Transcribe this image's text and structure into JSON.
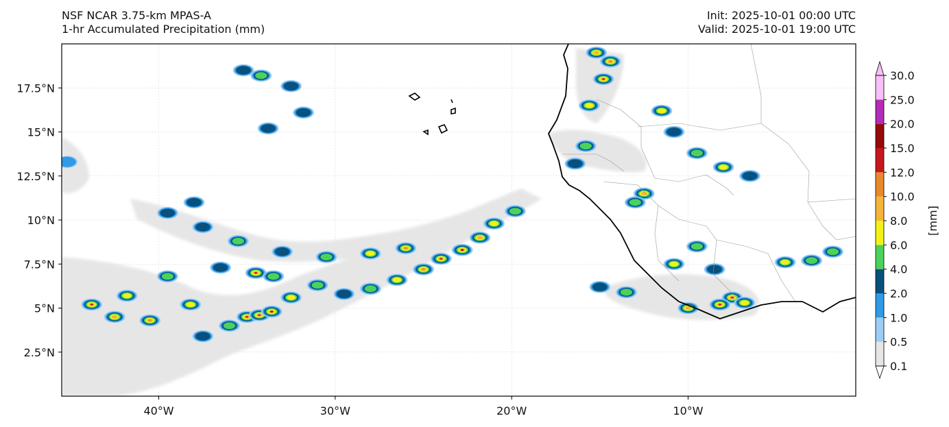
{
  "header": {
    "model_line": "NSF NCAR 3.75-km MPAS-A",
    "field_line": "1-hr Accumulated Precipitation (mm)",
    "init_line": "Init: 2025-10-01 00:00 UTC",
    "valid_line": "Valid: 2025-10-01 19:00 UTC"
  },
  "map": {
    "lon_ticks": [
      {
        "lon": -40,
        "label": "40°W"
      },
      {
        "lon": -30,
        "label": "30°W"
      },
      {
        "lon": -20,
        "label": "20°W"
      },
      {
        "lon": -10,
        "label": "10°W"
      }
    ],
    "lat_ticks": [
      {
        "lat": 17.5,
        "label": "17.5°N"
      },
      {
        "lat": 15,
        "label": "15°N"
      },
      {
        "lat": 12.5,
        "label": "12.5°N"
      },
      {
        "lat": 10,
        "label": "10°N"
      },
      {
        "lat": 7.5,
        "label": "7.5°N"
      },
      {
        "lat": 5,
        "label": "5°N"
      },
      {
        "lat": 2.5,
        "label": "2.5°N"
      }
    ],
    "extent": {
      "lon_min": -45.5,
      "lon_max": -0.5,
      "lat_min": 0,
      "lat_max": 20
    }
  },
  "colorbar": {
    "unit_label": "[mm]",
    "levels": [
      "0.1",
      "0.5",
      "1.0",
      "2.0",
      "4.0",
      "6.0",
      "8.0",
      "10.0",
      "12.0",
      "15.0",
      "20.0",
      "25.0",
      "30.0"
    ],
    "colors": [
      "#e6e6e6",
      "#9dcdf5",
      "#2e9ae8",
      "#08507d",
      "#4cd15c",
      "#f2f217",
      "#f5b43a",
      "#e8892a",
      "#c8171c",
      "#950b0b",
      "#b32bb8",
      "#f7c1f5"
    ],
    "under_color": "#ffffff",
    "over_color": "#f7c1f5"
  },
  "precip_cells": [
    {
      "lon": -43.8,
      "lat": 5.2,
      "v": 12
    },
    {
      "lon": -42.5,
      "lat": 4.5,
      "v": 8
    },
    {
      "lon": -41.8,
      "lat": 5.7,
      "v": 6
    },
    {
      "lon": -40.5,
      "lat": 4.3,
      "v": 10
    },
    {
      "lon": -39.5,
      "lat": 6.8,
      "v": 4
    },
    {
      "lon": -38.2,
      "lat": 5.2,
      "v": 6
    },
    {
      "lon": -37.5,
      "lat": 3.4,
      "v": 3
    },
    {
      "lon": -36.0,
      "lat": 4.0,
      "v": 4
    },
    {
      "lon": -35.0,
      "lat": 4.5,
      "v": 12
    },
    {
      "lon": -34.3,
      "lat": 4.6,
      "v": 20
    },
    {
      "lon": -33.6,
      "lat": 4.8,
      "v": 15
    },
    {
      "lon": -32.5,
      "lat": 5.6,
      "v": 6
    },
    {
      "lon": -31.0,
      "lat": 6.3,
      "v": 4
    },
    {
      "lon": -29.5,
      "lat": 5.8,
      "v": 3
    },
    {
      "lon": -28.0,
      "lat": 6.1,
      "v": 4
    },
    {
      "lon": -26.5,
      "lat": 6.6,
      "v": 6
    },
    {
      "lon": -25.0,
      "lat": 7.2,
      "v": 10
    },
    {
      "lon": -24.0,
      "lat": 7.8,
      "v": 12
    },
    {
      "lon": -22.8,
      "lat": 8.3,
      "v": 15
    },
    {
      "lon": -21.8,
      "lat": 9.0,
      "v": 8
    },
    {
      "lon": -21.0,
      "lat": 9.8,
      "v": 6
    },
    {
      "lon": -19.8,
      "lat": 10.5,
      "v": 4
    },
    {
      "lon": -26.0,
      "lat": 8.4,
      "v": 10
    },
    {
      "lon": -28.0,
      "lat": 8.1,
      "v": 6
    },
    {
      "lon": -30.5,
      "lat": 7.9,
      "v": 4
    },
    {
      "lon": -33.0,
      "lat": 8.2,
      "v": 3
    },
    {
      "lon": -35.5,
      "lat": 8.8,
      "v": 4
    },
    {
      "lon": -37.5,
      "lat": 9.6,
      "v": 3
    },
    {
      "lon": -39.5,
      "lat": 10.4,
      "v": 2
    },
    {
      "lon": -38.0,
      "lat": 11.0,
      "v": 2
    },
    {
      "lon": -34.5,
      "lat": 7.0,
      "v": 12
    },
    {
      "lon": -33.5,
      "lat": 6.8,
      "v": 4
    },
    {
      "lon": -36.5,
      "lat": 7.3,
      "v": 2
    },
    {
      "lon": -34.2,
      "lat": 18.2,
      "v": 4
    },
    {
      "lon": -32.5,
      "lat": 17.6,
      "v": 3
    },
    {
      "lon": -35.2,
      "lat": 18.5,
      "v": 2
    },
    {
      "lon": -33.8,
      "lat": 15.2,
      "v": 2
    },
    {
      "lon": -31.8,
      "lat": 16.1,
      "v": 2
    },
    {
      "lon": -45.2,
      "lat": 13.3,
      "v": 1
    },
    {
      "lon": -15.2,
      "lat": 19.5,
      "v": 8
    },
    {
      "lon": -14.8,
      "lat": 18.0,
      "v": 12
    },
    {
      "lon": -15.6,
      "lat": 16.5,
      "v": 6
    },
    {
      "lon": -14.4,
      "lat": 19.0,
      "v": 10
    },
    {
      "lon": -15.8,
      "lat": 14.2,
      "v": 4
    },
    {
      "lon": -16.4,
      "lat": 13.2,
      "v": 3
    },
    {
      "lon": -11.5,
      "lat": 16.2,
      "v": 6
    },
    {
      "lon": -10.8,
      "lat": 15.0,
      "v": 3
    },
    {
      "lon": -9.5,
      "lat": 13.8,
      "v": 4
    },
    {
      "lon": -8.0,
      "lat": 13.0,
      "v": 6
    },
    {
      "lon": -6.5,
      "lat": 12.5,
      "v": 3
    },
    {
      "lon": -12.5,
      "lat": 11.5,
      "v": 8
    },
    {
      "lon": -13.0,
      "lat": 11.0,
      "v": 4
    },
    {
      "lon": -9.5,
      "lat": 8.5,
      "v": 4
    },
    {
      "lon": -10.8,
      "lat": 7.5,
      "v": 6
    },
    {
      "lon": -8.5,
      "lat": 7.2,
      "v": 3
    },
    {
      "lon": -7.5,
      "lat": 5.6,
      "v": 20
    },
    {
      "lon": -8.2,
      "lat": 5.2,
      "v": 12
    },
    {
      "lon": -10.0,
      "lat": 5.0,
      "v": 8
    },
    {
      "lon": -6.8,
      "lat": 5.3,
      "v": 6
    },
    {
      "lon": -4.5,
      "lat": 7.6,
      "v": 6
    },
    {
      "lon": -3.0,
      "lat": 7.7,
      "v": 4
    },
    {
      "lon": -1.8,
      "lat": 8.2,
      "v": 4
    },
    {
      "lon": -13.5,
      "lat": 5.9,
      "v": 4
    },
    {
      "lon": -15.0,
      "lat": 6.2,
      "v": 2
    }
  ]
}
